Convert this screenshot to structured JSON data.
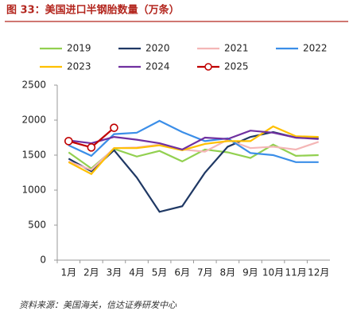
{
  "chart_data": {
    "type": "line",
    "title": "图 33：美国进口半钢胎数量（万条）",
    "source": "资料来源：美国海关，信达证券研发中心",
    "categories": [
      "1月",
      "2月",
      "3月",
      "4月",
      "5月",
      "6月",
      "7月",
      "8月",
      "9月",
      "10月",
      "11月",
      "12月"
    ],
    "ylim": [
      0,
      2500
    ],
    "yticks": [
      0,
      500,
      1000,
      1500,
      2000,
      2500
    ],
    "series": [
      {
        "name": "2019",
        "color": "#92d050",
        "values": [
          1540,
          1310,
          1590,
          1480,
          1560,
          1410,
          1580,
          1540,
          1460,
          1650,
          1490,
          1500
        ]
      },
      {
        "name": "2020",
        "color": "#1f3864",
        "values": [
          1450,
          1270,
          1570,
          1180,
          690,
          770,
          1250,
          1620,
          1760,
          1830,
          1750,
          1740
        ]
      },
      {
        "name": "2021",
        "color": "#f4b6b6",
        "values": [
          1410,
          1290,
          1600,
          1610,
          1650,
          1580,
          1550,
          1720,
          1600,
          1620,
          1580,
          1690
        ]
      },
      {
        "name": "2022",
        "color": "#3b8ee8",
        "values": [
          1640,
          1490,
          1800,
          1820,
          1990,
          1830,
          1700,
          1740,
          1530,
          1500,
          1400,
          1400
        ]
      },
      {
        "name": "2023",
        "color": "#ffc000",
        "values": [
          1400,
          1230,
          1600,
          1600,
          1640,
          1570,
          1660,
          1700,
          1700,
          1910,
          1770,
          1760
        ]
      },
      {
        "name": "2024",
        "color": "#7030a0",
        "values": [
          1710,
          1670,
          1760,
          1720,
          1670,
          1580,
          1750,
          1730,
          1850,
          1820,
          1750,
          1730
        ]
      },
      {
        "name": "2025",
        "color": "#c00000",
        "marker": "circle",
        "values": [
          1700,
          1610,
          1890,
          null,
          null,
          null,
          null,
          null,
          null,
          null,
          null,
          null
        ]
      }
    ]
  }
}
